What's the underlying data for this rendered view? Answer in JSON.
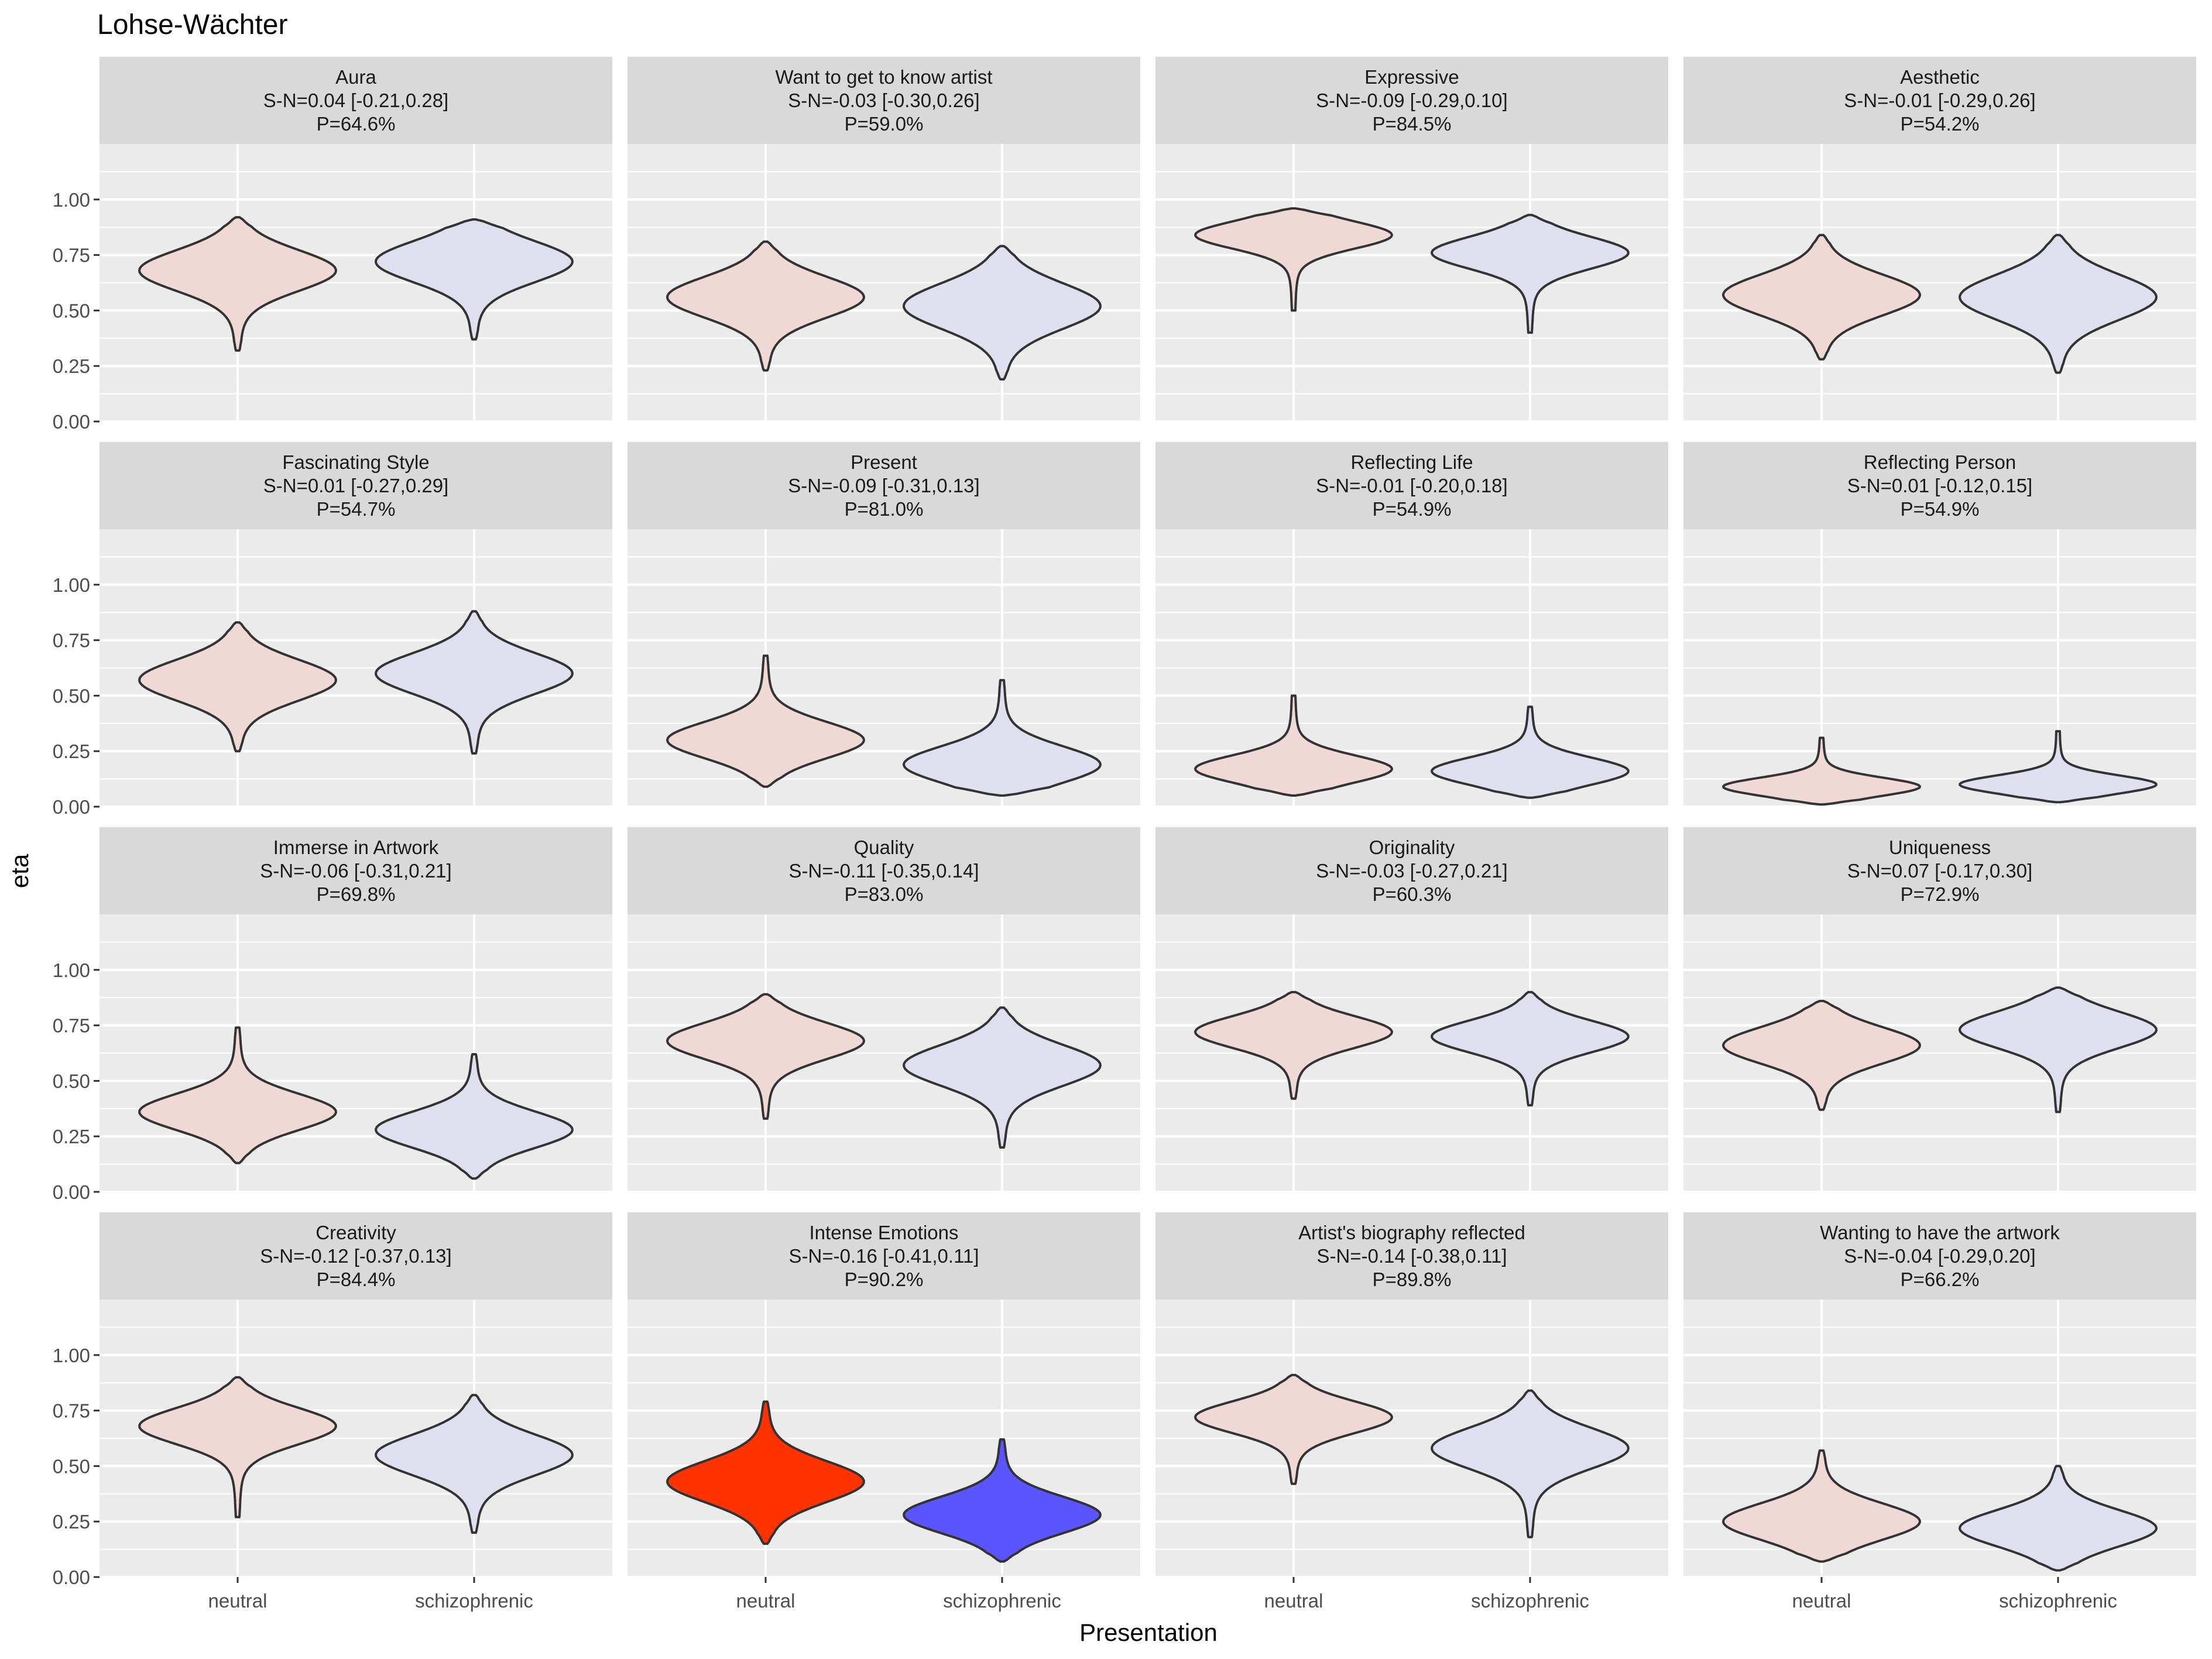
{
  "chart_data": {
    "type": "violin",
    "title": "Lohse-Wächter",
    "xlabel": "Presentation",
    "ylabel": "eta",
    "categories": [
      "neutral",
      "schizophrenic"
    ],
    "ylim": [
      0,
      1.25
    ],
    "yticks": [
      0,
      0.25,
      0.5,
      0.75,
      1.0
    ],
    "ytick_labels": [
      "0.00",
      "0.25",
      "0.50",
      "0.75",
      "1.00"
    ],
    "colors": {
      "neutral_light": "#efd8d5",
      "schizophrenic_light": "#dfdfef",
      "neutral_strong": "#ff3300",
      "schizophrenic_strong": "#5a55ff",
      "outline": "#333333",
      "panel_bg": "#ebebeb",
      "strip_bg": "#d9d9d9",
      "grid": "#ffffff"
    },
    "panels": [
      {
        "title": "Aura",
        "effect": "S-N=0.04 [-0.21,0.28]",
        "prob": "P=64.6%",
        "highlight": false,
        "violins": [
          {
            "min": 0.32,
            "max": 0.92,
            "mode": 0.68,
            "sd": 0.09
          },
          {
            "min": 0.37,
            "max": 0.91,
            "mode": 0.72,
            "sd": 0.09
          }
        ]
      },
      {
        "title": "Want to get to know artist",
        "effect": "S-N=-0.03 [-0.30,0.26]",
        "prob": "P=59.0%",
        "highlight": false,
        "violins": [
          {
            "min": 0.23,
            "max": 0.81,
            "mode": 0.56,
            "sd": 0.09
          },
          {
            "min": 0.19,
            "max": 0.79,
            "mode": 0.52,
            "sd": 0.1
          }
        ]
      },
      {
        "title": "Expressive",
        "effect": "S-N=-0.09 [-0.29,0.10]",
        "prob": "P=84.5%",
        "highlight": false,
        "violins": [
          {
            "min": 0.5,
            "max": 0.96,
            "mode": 0.84,
            "sd": 0.06
          },
          {
            "min": 0.4,
            "max": 0.93,
            "mode": 0.76,
            "sd": 0.07
          }
        ]
      },
      {
        "title": "Aesthetic",
        "effect": "S-N=-0.01 [-0.29,0.26]",
        "prob": "P=54.2%",
        "highlight": false,
        "violins": [
          {
            "min": 0.28,
            "max": 0.84,
            "mode": 0.57,
            "sd": 0.09
          },
          {
            "min": 0.22,
            "max": 0.84,
            "mode": 0.56,
            "sd": 0.1
          }
        ]
      },
      {
        "title": "Fascinating Style",
        "effect": "S-N=0.01 [-0.27,0.29]",
        "prob": "P=54.7%",
        "highlight": false,
        "violins": [
          {
            "min": 0.25,
            "max": 0.83,
            "mode": 0.57,
            "sd": 0.09
          },
          {
            "min": 0.24,
            "max": 0.88,
            "mode": 0.6,
            "sd": 0.09
          }
        ]
      },
      {
        "title": "Present",
        "effect": "S-N=-0.09 [-0.31,0.13]",
        "prob": "P=81.0%",
        "highlight": false,
        "violins": [
          {
            "min": 0.09,
            "max": 0.68,
            "mode": 0.3,
            "sd": 0.08
          },
          {
            "min": 0.05,
            "max": 0.57,
            "mode": 0.19,
            "sd": 0.08
          }
        ]
      },
      {
        "title": "Reflecting Life",
        "effect": "S-N=-0.01 [-0.20,0.18]",
        "prob": "P=54.9%",
        "highlight": false,
        "violins": [
          {
            "min": 0.05,
            "max": 0.5,
            "mode": 0.17,
            "sd": 0.06
          },
          {
            "min": 0.04,
            "max": 0.45,
            "mode": 0.16,
            "sd": 0.06
          }
        ]
      },
      {
        "title": "Reflecting Person",
        "effect": "S-N=0.01 [-0.12,0.15]",
        "prob": "P=54.9%",
        "highlight": false,
        "violins": [
          {
            "min": 0.01,
            "max": 0.31,
            "mode": 0.09,
            "sd": 0.04
          },
          {
            "min": 0.02,
            "max": 0.34,
            "mode": 0.1,
            "sd": 0.04
          }
        ]
      },
      {
        "title": "Immerse in Artwork",
        "effect": "S-N=-0.06 [-0.31,0.21]",
        "prob": "P=69.8%",
        "highlight": false,
        "violins": [
          {
            "min": 0.13,
            "max": 0.74,
            "mode": 0.36,
            "sd": 0.08
          },
          {
            "min": 0.06,
            "max": 0.62,
            "mode": 0.28,
            "sd": 0.08
          }
        ]
      },
      {
        "title": "Quality",
        "effect": "S-N=-0.11 [-0.35,0.14]",
        "prob": "P=83.0%",
        "highlight": false,
        "violins": [
          {
            "min": 0.33,
            "max": 0.89,
            "mode": 0.68,
            "sd": 0.08
          },
          {
            "min": 0.2,
            "max": 0.83,
            "mode": 0.57,
            "sd": 0.09
          }
        ]
      },
      {
        "title": "Originality",
        "effect": "S-N=-0.03 [-0.27,0.21]",
        "prob": "P=60.3%",
        "highlight": false,
        "violins": [
          {
            "min": 0.42,
            "max": 0.9,
            "mode": 0.72,
            "sd": 0.07
          },
          {
            "min": 0.39,
            "max": 0.9,
            "mode": 0.7,
            "sd": 0.07
          }
        ]
      },
      {
        "title": "Uniqueness",
        "effect": "S-N=0.07 [-0.17,0.30]",
        "prob": "P=72.9%",
        "highlight": false,
        "violins": [
          {
            "min": 0.37,
            "max": 0.86,
            "mode": 0.66,
            "sd": 0.08
          },
          {
            "min": 0.36,
            "max": 0.92,
            "mode": 0.73,
            "sd": 0.08
          }
        ]
      },
      {
        "title": "Creativity",
        "effect": "S-N=-0.12 [-0.37,0.13]",
        "prob": "P=84.4%",
        "highlight": false,
        "violins": [
          {
            "min": 0.27,
            "max": 0.9,
            "mode": 0.68,
            "sd": 0.08
          },
          {
            "min": 0.2,
            "max": 0.82,
            "mode": 0.55,
            "sd": 0.09
          }
        ]
      },
      {
        "title": "Intense Emotions",
        "effect": "S-N=-0.16 [-0.41,0.11]",
        "prob": "P=90.2%",
        "highlight": true,
        "violins": [
          {
            "min": 0.15,
            "max": 0.79,
            "mode": 0.43,
            "sd": 0.09
          },
          {
            "min": 0.07,
            "max": 0.62,
            "mode": 0.28,
            "sd": 0.08
          }
        ]
      },
      {
        "title": "Artist's biography reflected",
        "effect": "S-N=-0.14 [-0.38,0.11]",
        "prob": "P=89.8%",
        "highlight": false,
        "violins": [
          {
            "min": 0.42,
            "max": 0.91,
            "mode": 0.72,
            "sd": 0.07
          },
          {
            "min": 0.18,
            "max": 0.84,
            "mode": 0.58,
            "sd": 0.09
          }
        ]
      },
      {
        "title": "Wanting to have the artwork",
        "effect": "S-N=-0.04 [-0.29,0.20]",
        "prob": "P=66.2%",
        "highlight": false,
        "violins": [
          {
            "min": 0.07,
            "max": 0.57,
            "mode": 0.25,
            "sd": 0.08
          },
          {
            "min": 0.03,
            "max": 0.5,
            "mode": 0.22,
            "sd": 0.08
          }
        ]
      }
    ]
  }
}
